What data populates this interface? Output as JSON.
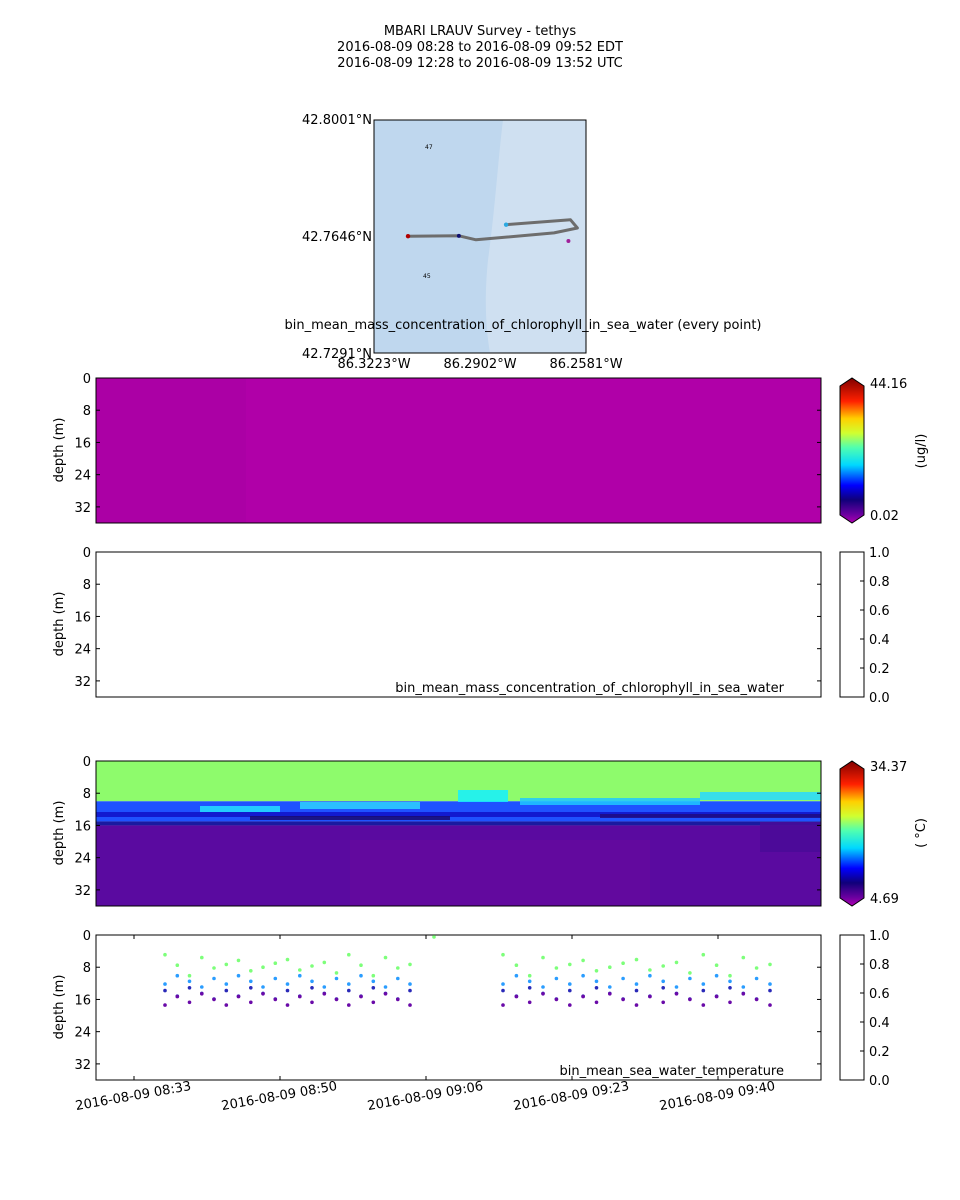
{
  "title": {
    "line1": "MBARI LRAUV Survey - tethys",
    "line2": "2016-08-09 08:28  to  2016-08-09 09:52 EDT",
    "line3": "2016-08-09 12:28  to  2016-08-09 13:52 UTC"
  },
  "map": {
    "lat_labels": [
      "42.8001°N",
      "42.7646°N",
      "42.7291°N"
    ],
    "lon_labels": [
      "86.3223°W",
      "86.2902°W",
      "86.2581°W"
    ],
    "contour_labels": [
      "47",
      "45"
    ],
    "track": [
      [
        -86.312,
        42.7647
      ],
      [
        -86.2966,
        42.7648
      ],
      [
        -86.2914,
        42.7636
      ],
      [
        -86.2678,
        42.7657
      ],
      [
        -86.2607,
        42.7672
      ],
      [
        -86.2628,
        42.7697
      ],
      [
        -86.2823,
        42.7682
      ]
    ],
    "colors": {
      "land": "#bfd7ee",
      "water": "#cfe0f1",
      "track": "#6d6d6d",
      "start_dot": "#b00000",
      "end_dot": "#2aa8e0"
    }
  },
  "chart_data": [
    {
      "type": "heatmap",
      "title": "bin_mean_mass_concentration_of_chlorophyll_in_sea_water (every point)",
      "ylabel": "depth (m)",
      "ylim": [
        0,
        36
      ],
      "y_ticks": [
        "0",
        "8",
        "16",
        "24",
        "32"
      ],
      "colorbar": {
        "min": "0.02",
        "max": "44.16",
        "label": "(ug/l)",
        "colormap": "jet-magenta"
      },
      "fill_value": 0.02,
      "fill_color": "#b000a8"
    },
    {
      "type": "scatter",
      "title": "bin_mean_mass_concentration_of_chlorophyll_in_sea_water",
      "ylabel": "depth (m)",
      "ylim": [
        0,
        36
      ],
      "y_ticks": [
        "0",
        "8",
        "16",
        "24",
        "32"
      ],
      "colorbar": {
        "ticks": [
          "1.0",
          "0.8",
          "0.6",
          "0.4",
          "0.2",
          "0.0"
        ]
      },
      "points": []
    },
    {
      "type": "heatmap",
      "title": "",
      "ylabel": "depth (m)",
      "ylim": [
        0,
        36
      ],
      "y_ticks": [
        "0",
        "8",
        "16",
        "24",
        "32"
      ],
      "colorbar": {
        "min": "4.69",
        "max": "34.37",
        "label": "( °C)",
        "colormap": "jet-magenta"
      },
      "layers": [
        {
          "name": "surface",
          "depth_range": [
            0,
            10
          ],
          "value": 22,
          "color": "#8efb6c"
        },
        {
          "name": "thermocline",
          "depth_range": [
            10,
            15
          ],
          "value": 14,
          "color": "#1f52ff"
        },
        {
          "name": "transition",
          "depth_range": [
            15,
            16
          ],
          "value": 6.5,
          "color": "#1a1aa0"
        },
        {
          "name": "deep",
          "depth_range": [
            16,
            36
          ],
          "value": 5.0,
          "color": "#5a0aa0"
        }
      ]
    },
    {
      "type": "scatter",
      "title": "bin_mean_sea_water_temperature",
      "ylabel": "depth (m)",
      "ylim": [
        0,
        36
      ],
      "y_ticks": [
        "0",
        "8",
        "16",
        "24",
        "32"
      ],
      "colorbar": {
        "ticks": [
          "1.0",
          "0.8",
          "0.6",
          "0.4",
          "0.2",
          "0.0"
        ]
      },
      "profile_depths": [
        {
          "depth": 7.5,
          "color": "#7dff7a"
        },
        {
          "depth": 11.5,
          "color": "#2a9dff"
        },
        {
          "depth": 14.5,
          "color": "#2a2ab8"
        },
        {
          "depth": 16,
          "color": "#6a0aa8"
        }
      ],
      "x_ticks": [
        "2016-08-09 08:33",
        "2016-08-09 08:50",
        "2016-08-09 09:06",
        "2016-08-09 09:23",
        "2016-08-09 09:40"
      ]
    }
  ]
}
